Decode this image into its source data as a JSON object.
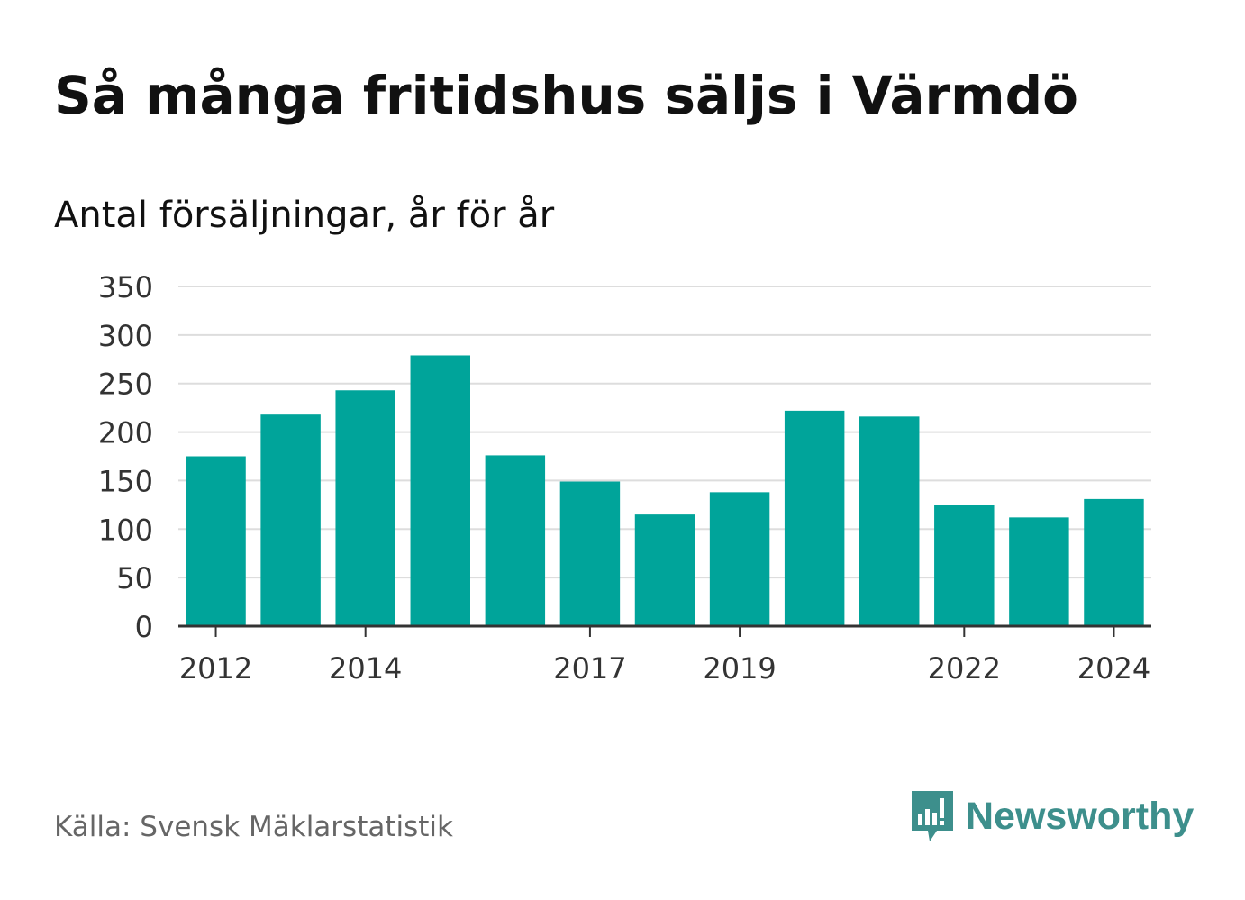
{
  "title": "Så många fritidshus säljs i Värmdö",
  "subtitle": "Antal försäljningar, år för år",
  "source": "Källa: Svensk Mäklarstatistik",
  "brand": {
    "name": "Newsworthy",
    "icon": "newsworthy-logo-icon",
    "color": "#3d8f8c"
  },
  "chart_data": {
    "type": "bar",
    "x": [
      2012,
      2013,
      2014,
      2015,
      2016,
      2017,
      2018,
      2019,
      2020,
      2021,
      2022,
      2023,
      2024
    ],
    "values": [
      175,
      218,
      243,
      279,
      176,
      149,
      115,
      138,
      222,
      216,
      125,
      112,
      131
    ],
    "x_tick_labels": [
      "2012",
      "2014",
      "2017",
      "2019",
      "2022",
      "2024"
    ],
    "y_ticks": [
      0,
      50,
      100,
      150,
      200,
      250,
      300,
      350
    ],
    "ylim": [
      0,
      350
    ],
    "grid": true,
    "bar_color": "#00a49a"
  }
}
